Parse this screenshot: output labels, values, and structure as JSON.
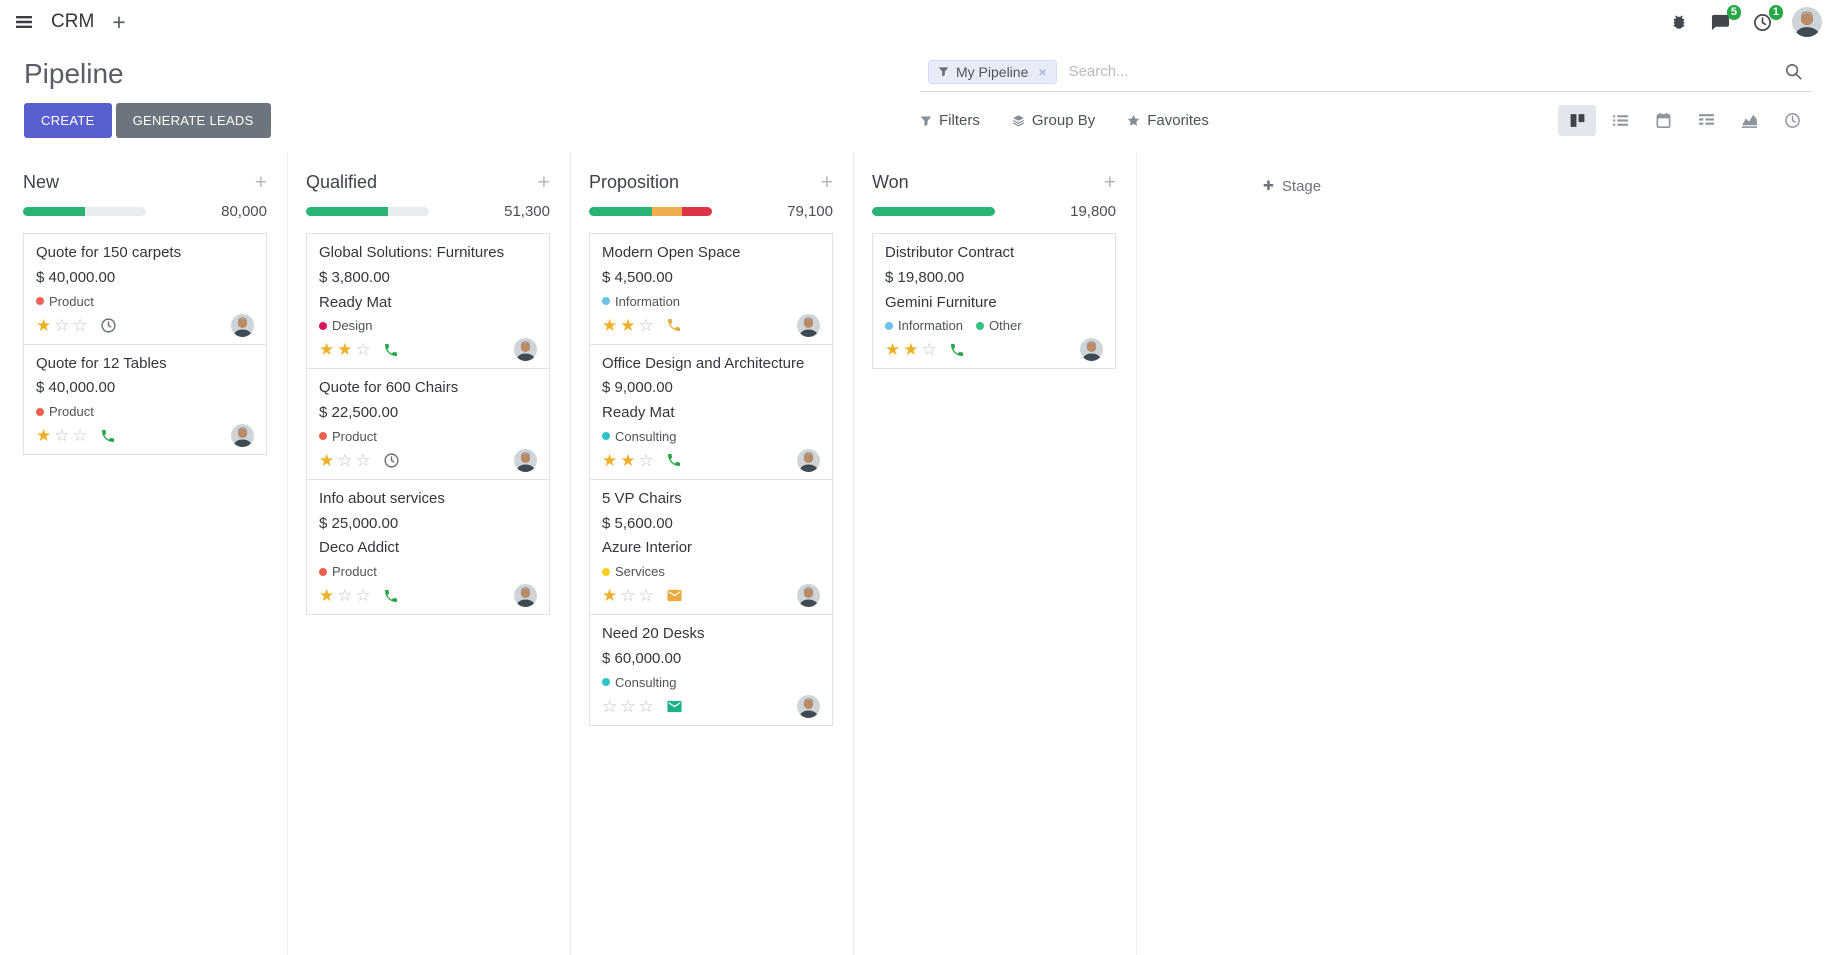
{
  "colors": {
    "primary": "#5a5fd0",
    "secondary": "#6c757d",
    "success": "#29b475",
    "warning": "#f0ad4e",
    "danger": "#dc3545",
    "badge": "#28a745"
  },
  "navbar": {
    "app_name": "CRM",
    "messages_badge": "5",
    "activities_badge": "1"
  },
  "control_panel": {
    "title": "Pipeline",
    "create_label": "CREATE",
    "generate_leads_label": "GENERATE LEADS",
    "search": {
      "facet_label": "My Pipeline",
      "placeholder": "Search..."
    },
    "filters_label": "Filters",
    "group_by_label": "Group By",
    "favorites_label": "Favorites",
    "view_switcher": {
      "views": [
        "kanban",
        "list",
        "calendar",
        "pivot",
        "graph",
        "activity"
      ],
      "active": "kanban"
    }
  },
  "board": {
    "add_stage_label": "Stage",
    "columns": [
      {
        "name": "New",
        "total": "80,000",
        "progress": [
          {
            "color": "#29b475",
            "pct": 50
          }
        ],
        "cards": [
          {
            "title": "Quote for 150 carpets",
            "amount": "$ 40,000.00",
            "partner": "",
            "tags": [
              {
                "label": "Product",
                "color": "#f06050"
              }
            ],
            "stars": 1,
            "activity": {
              "icon": "clock",
              "color": "#6a7178"
            }
          },
          {
            "title": "Quote for 12 Tables",
            "amount": "$ 40,000.00",
            "partner": "",
            "tags": [
              {
                "label": "Product",
                "color": "#f06050"
              }
            ],
            "stars": 1,
            "activity": {
              "icon": "phone",
              "color": "#28a745"
            }
          }
        ]
      },
      {
        "name": "Qualified",
        "total": "51,300",
        "progress": [
          {
            "color": "#29b475",
            "pct": 67
          }
        ],
        "cards": [
          {
            "title": "Global Solutions: Furnitures",
            "amount": "$ 3,800.00",
            "partner": "Ready Mat",
            "tags": [
              {
                "label": "Design",
                "color": "#d6145f"
              }
            ],
            "stars": 2,
            "activity": {
              "icon": "phone",
              "color": "#28a745"
            }
          },
          {
            "title": "Quote for 600 Chairs",
            "amount": "$ 22,500.00",
            "partner": "",
            "tags": [
              {
                "label": "Product",
                "color": "#f06050"
              }
            ],
            "stars": 1,
            "activity": {
              "icon": "clock",
              "color": "#6a7178"
            }
          },
          {
            "title": "Info about services",
            "amount": "$ 25,000.00",
            "partner": "Deco Addict",
            "tags": [
              {
                "label": "Product",
                "color": "#f06050"
              }
            ],
            "stars": 1,
            "activity": {
              "icon": "phone",
              "color": "#28a745"
            }
          }
        ]
      },
      {
        "name": "Proposition",
        "total": "79,100",
        "progress": [
          {
            "color": "#29b475",
            "pct": 51
          },
          {
            "color": "#f0ad4e",
            "pct": 25
          },
          {
            "color": "#dc3545",
            "pct": 24
          }
        ],
        "cards": [
          {
            "title": "Modern Open Space",
            "amount": "$ 4,500.00",
            "partner": "",
            "tags": [
              {
                "label": "Information",
                "color": "#6cc1ed"
              }
            ],
            "stars": 2,
            "activity": {
              "icon": "phone",
              "color": "#e9a93d"
            }
          },
          {
            "title": "Office Design and Architecture",
            "amount": "$ 9,000.00",
            "partner": "Ready Mat",
            "tags": [
              {
                "label": "Consulting",
                "color": "#30c2c9"
              }
            ],
            "stars": 2,
            "activity": {
              "icon": "phone",
              "color": "#28a745"
            }
          },
          {
            "title": "5 VP Chairs",
            "amount": "$ 5,600.00",
            "partner": "Azure Interior",
            "tags": [
              {
                "label": "Services",
                "color": "#f7cd1f"
              }
            ],
            "stars": 1,
            "activity": {
              "icon": "envelope",
              "color": "#e9a93d"
            }
          },
          {
            "title": "Need 20 Desks",
            "amount": "$ 60,000.00",
            "partner": "",
            "tags": [
              {
                "label": "Consulting",
                "color": "#30c2c9"
              }
            ],
            "stars": 0,
            "activity": {
              "icon": "envelope",
              "color": "#1ab188"
            }
          }
        ]
      },
      {
        "name": "Won",
        "total": "19,800",
        "progress": [
          {
            "color": "#29b475",
            "pct": 100
          }
        ],
        "cards": [
          {
            "title": "Distributor Contract",
            "amount": "$ 19,800.00",
            "partner": "Gemini Furniture",
            "tags": [
              {
                "label": "Information",
                "color": "#6cc1ed"
              },
              {
                "label": "Other",
                "color": "#30c381"
              }
            ],
            "stars": 2,
            "activity": {
              "icon": "phone",
              "color": "#28a745"
            }
          }
        ]
      }
    ]
  }
}
